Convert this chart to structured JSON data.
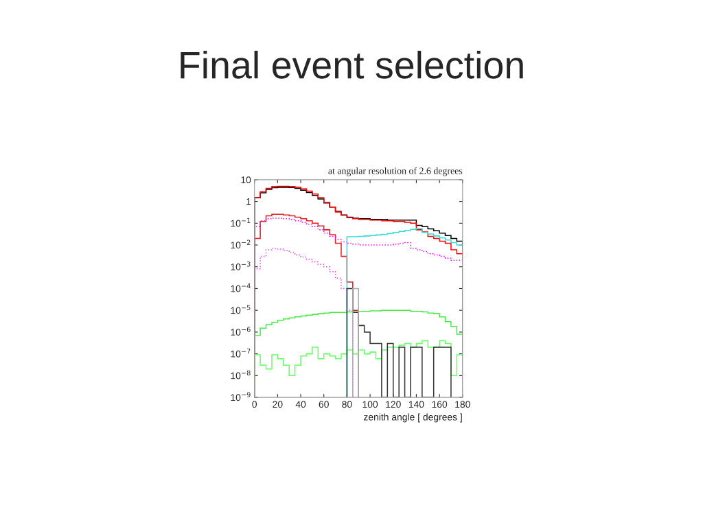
{
  "chart_data": {
    "type": "histogram",
    "title": "Final event selection",
    "subtitle": "at angular resolution of 2.6 degrees",
    "xlabel": "zenith angle [ degrees ]",
    "bins": [
      0,
      5,
      10,
      15,
      20,
      25,
      30,
      35,
      40,
      45,
      50,
      55,
      60,
      65,
      70,
      75,
      80,
      85,
      90,
      95,
      100,
      105,
      110,
      115,
      120,
      125,
      130,
      135,
      140,
      145,
      150,
      155,
      160,
      165,
      170,
      175,
      180
    ],
    "log": "y",
    "xlim": [
      0,
      180
    ],
    "xticks": [
      0,
      20,
      40,
      60,
      80,
      100,
      120,
      140,
      160,
      180
    ],
    "ylim": [
      1e-09,
      10
    ],
    "yticks": [
      {
        "value": 1e-09,
        "label": "10$^{−9}$"
      },
      {
        "value": 1e-08,
        "label": "10$^{−8}$"
      },
      {
        "value": 1e-07,
        "label": "10$^{−7}$"
      },
      {
        "value": 1e-06,
        "label": "10$^{−6}$"
      },
      {
        "value": 1e-05,
        "label": "10$^{−5}$"
      },
      {
        "value": 0.0001,
        "label": "10$^{−4}$"
      },
      {
        "value": 0.001,
        "label": "10$^{−3}$"
      },
      {
        "value": 0.01,
        "label": "10$^{−2}$"
      },
      {
        "value": 0.1,
        "label": "10$^{−1}$"
      },
      1,
      10
    ],
    "grid": false,
    "legend": false,
    "series": [
      {
        "color": "#000000",
        "values": [
          1.5,
          2.5,
          3.6,
          4.3,
          4.5,
          4.5,
          4.4,
          4.0,
          3.3,
          2.6,
          1.9,
          1.3,
          0.85,
          0.55,
          0.35,
          0.24,
          0.19,
          0.17,
          0.16,
          0.16,
          0.15,
          0.15,
          0.15,
          0.14,
          0.14,
          0.14,
          0.14,
          0.14,
          0.08,
          0.07,
          0.055,
          0.045,
          0.035,
          0.027,
          0.02,
          0.015
        ]
      },
      {
        "color": "#ff0000",
        "values": [
          1.5,
          2.8,
          4.0,
          4.9,
          5.0,
          5.0,
          4.9,
          4.5,
          3.8,
          3.0,
          2.2,
          1.5,
          0.9,
          0.55,
          0.33,
          0.23,
          0.18,
          0.16,
          0.15,
          0.15,
          0.14,
          0.14,
          0.13,
          0.13,
          0.12,
          0.12,
          0.11,
          0.1,
          0.05,
          0.04,
          0.025,
          0.02,
          0.015,
          0.012,
          0.006,
          0.004
        ]
      },
      {
        "color": "#e02020",
        "bins": [
          0,
          5,
          10,
          15,
          20,
          25,
          30,
          35,
          40,
          45,
          50,
          55,
          60,
          65,
          70,
          75,
          80,
          85,
          90
        ],
        "values": [
          0.02,
          0.12,
          0.22,
          0.26,
          0.26,
          0.24,
          0.22,
          0.19,
          0.16,
          0.13,
          0.1,
          0.075,
          0.05,
          0.03,
          0.012,
          0.003,
          0.0002,
          1e-05
        ]
      },
      {
        "color": "#ff00ff",
        "line_style": "dotted",
        "values": [
          0.07,
          0.13,
          0.16,
          0.17,
          0.17,
          0.16,
          0.15,
          0.13,
          0.11,
          0.09,
          0.07,
          0.05,
          0.035,
          0.025,
          0.018,
          0.014,
          0.012,
          0.011,
          0.01,
          0.01,
          0.01,
          0.01,
          0.01,
          0.01,
          0.011,
          0.012,
          0.013,
          0.007,
          0.006,
          0.005,
          0.004,
          0.0035,
          0.003,
          0.0025,
          0.002,
          0.002
        ]
      },
      {
        "color": "#ee44ee",
        "line_style": "dotted",
        "bins": [
          0,
          5,
          10,
          15,
          20,
          25,
          30,
          35,
          40,
          45,
          50,
          55,
          60,
          65,
          70,
          75,
          80,
          85
        ],
        "values": [
          0.0008,
          0.003,
          0.006,
          0.007,
          0.0065,
          0.0055,
          0.0045,
          0.0035,
          0.0028,
          0.0022,
          0.0017,
          0.0013,
          0.001,
          0.0006,
          0.0003,
          0.0001,
          1e-05
        ]
      },
      {
        "color": "#33dddd",
        "bins": [
          80,
          85,
          90,
          95,
          100,
          105,
          110,
          115,
          120,
          125,
          130,
          135,
          140,
          145,
          150,
          155,
          160,
          165,
          170,
          175,
          180
        ],
        "values": [
          0.024,
          0.024,
          0.025,
          0.026,
          0.027,
          0.029,
          0.031,
          0.034,
          0.038,
          0.042,
          0.047,
          0.052,
          0.057,
          0.038,
          0.032,
          0.026,
          0.021,
          0.017,
          0.013,
          0.01
        ]
      },
      {
        "color": "#44ee44",
        "values": [
          7e-07,
          1.5e-06,
          2.2e-06,
          2.8e-06,
          3.5e-06,
          4e-06,
          4.5e-06,
          5e-06,
          5.5e-06,
          6e-06,
          6.5e-06,
          7e-06,
          7.5e-06,
          8e-06,
          8e-06,
          8e-06,
          8.5e-06,
          8.5e-06,
          9e-06,
          9e-06,
          9.5e-06,
          9.5e-06,
          1e-05,
          1e-05,
          1e-05,
          1e-05,
          1e-05,
          9e-06,
          9e-06,
          8.5e-06,
          7.5e-06,
          7e-06,
          5e-06,
          3e-06,
          1.8e-06,
          8e-07
        ]
      },
      {
        "color": "#66ff66",
        "values": [
          9e-08,
          3e-08,
          2e-08,
          9e-08,
          6e-08,
          3e-08,
          1e-08,
          3e-08,
          8e-08,
          1e-07,
          2e-07,
          6e-08,
          1e-07,
          8e-08,
          6e-08,
          1e-07,
          1.5e-07,
          1e-07,
          1.5e-07,
          1e-07,
          1.2e-07,
          6e-08,
          1.5e-07,
          2e-07,
          2e-07,
          2.5e-07,
          3e-07,
          2e-07,
          3e-07,
          4e-07,
          2e-07,
          2e-07,
          4e-07,
          3e-07,
          1e-08,
          9e-08
        ]
      },
      {
        "color": "#333333",
        "bins": [
          80,
          85,
          90,
          95,
          100,
          105,
          110,
          115,
          120,
          125,
          130,
          135,
          140,
          145,
          150,
          155,
          160,
          165,
          170
        ],
        "values": [
          0.0001,
          8e-06,
          2e-06,
          1e-06,
          3e-07,
          3e-07,
          1e-09,
          3e-07,
          1e-09,
          2e-07,
          1e-09,
          2e-07,
          2e-07,
          1e-09,
          1e-09,
          2e-07,
          2e-07,
          2e-07
        ]
      },
      {
        "color": "#aaaaaa",
        "bins": [
          85,
          90
        ],
        "values": [
          0.0001
        ]
      }
    ]
  }
}
